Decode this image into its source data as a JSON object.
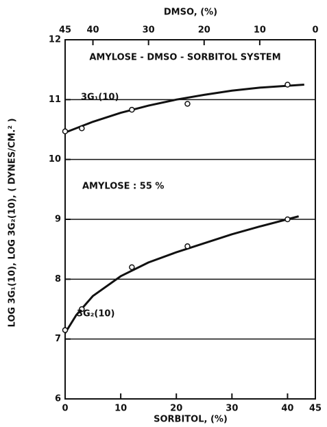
{
  "chart_data": {
    "type": "scatter",
    "title": "AMYLOSE - DMSO - SORBITOL SYSTEM",
    "annotation": "AMYLOSE : 55 %",
    "xlabel": "SORBITOL, (%)",
    "ylabel": "LOG 3G₁(10), LOG 3G₂(10), ( DYNES/CM.² )",
    "x2label": "DMSO, (%)",
    "xlim": [
      0,
      45
    ],
    "xticks": [
      0,
      10,
      20,
      30,
      40,
      45
    ],
    "x2lim": [
      45,
      0
    ],
    "x2ticks": [
      45,
      40,
      30,
      20,
      10,
      0
    ],
    "ylim": [
      6,
      12
    ],
    "yticks": [
      6,
      7,
      8,
      9,
      10,
      11,
      12
    ],
    "grid": true,
    "color": "#111111",
    "series": [
      {
        "name": "3G₁(10)",
        "x": [
          0,
          3,
          12,
          22,
          40
        ],
        "values": [
          10.47,
          10.52,
          10.83,
          10.93,
          11.25
        ],
        "fit_x": [
          0,
          5,
          10,
          15,
          20,
          25,
          30,
          35,
          43
        ],
        "fit_values": [
          10.45,
          10.63,
          10.78,
          10.9,
          11.0,
          11.08,
          11.15,
          11.2,
          11.25
        ]
      },
      {
        "name": "3G₂(10)",
        "x": [
          0,
          3,
          12,
          22,
          40
        ],
        "values": [
          7.15,
          7.5,
          8.2,
          8.55,
          9.0
        ],
        "fit_x": [
          0,
          2,
          5,
          10,
          15,
          20,
          25,
          30,
          35,
          42
        ],
        "fit_values": [
          7.1,
          7.4,
          7.72,
          8.05,
          8.28,
          8.45,
          8.6,
          8.75,
          8.88,
          9.05
        ]
      }
    ]
  }
}
